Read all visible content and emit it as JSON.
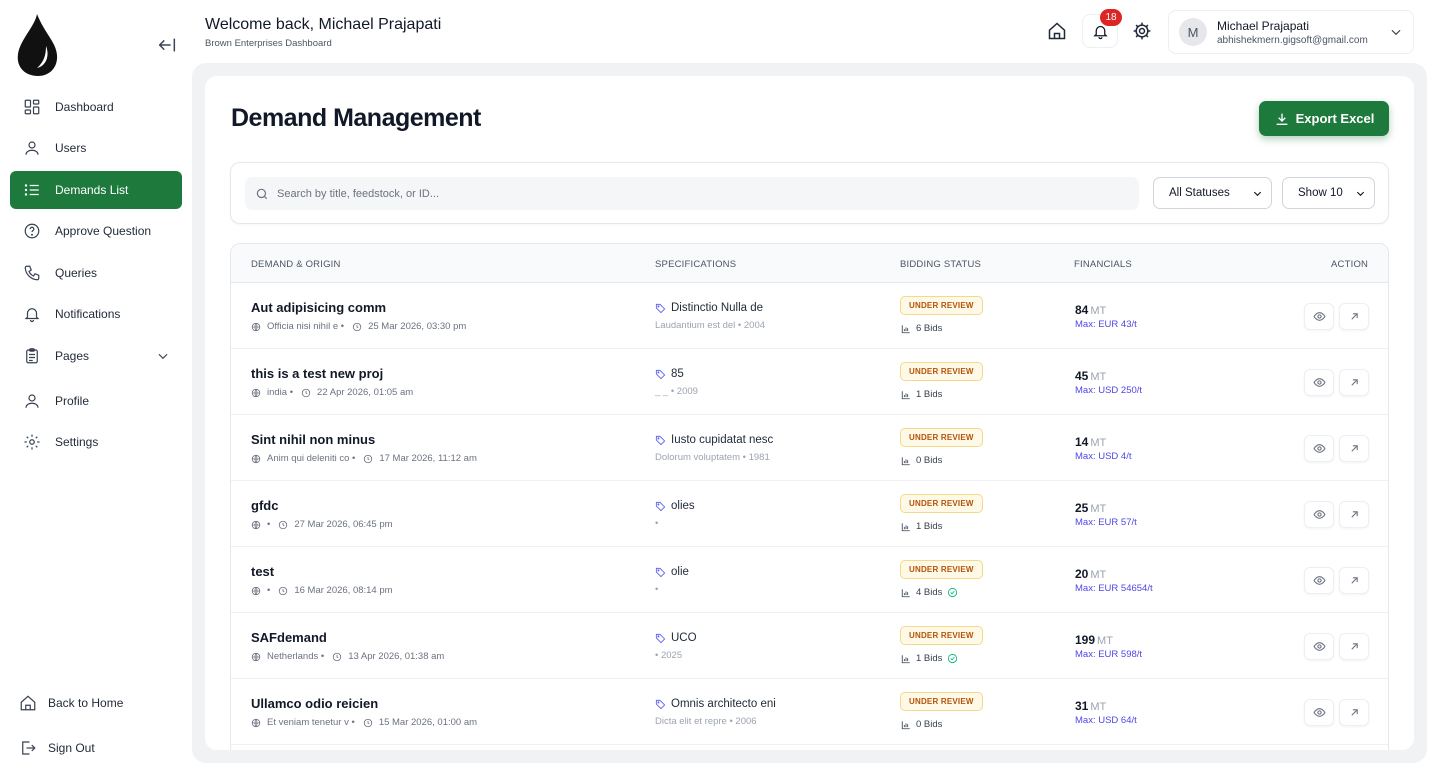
{
  "header": {
    "welcome": "Welcome back, Michael Prajapati",
    "subtitle": "Brown Enterprises Dashboard",
    "notification_count": "18",
    "user_initial": "M",
    "user_name": "Michael Prajapati",
    "user_email": "abhishekmern.gigsoft@gmail.com"
  },
  "sidebar": {
    "items": [
      {
        "label": "Dashboard",
        "icon": "dashboard-icon"
      },
      {
        "label": "Users",
        "icon": "user-icon"
      },
      {
        "label": "Demands List",
        "icon": "list-icon",
        "active": true
      },
      {
        "label": "Approve Question",
        "icon": "question-icon"
      },
      {
        "label": "Queries",
        "icon": "phone-icon"
      },
      {
        "label": "Notifications",
        "icon": "bell-icon"
      },
      {
        "label": "Pages",
        "icon": "clipboard-icon"
      },
      {
        "label": "Profile",
        "icon": "user-icon"
      },
      {
        "label": "Settings",
        "icon": "gear-icon"
      }
    ],
    "bottom": [
      {
        "label": "Back to Home",
        "icon": "home-icon"
      },
      {
        "label": "Sign Out",
        "icon": "sign-out-icon"
      }
    ]
  },
  "main": {
    "title": "Demand Management",
    "export_label": "Export Excel",
    "search_placeholder": "Search by title, feedstock, or ID...",
    "status_filter": "All Statuses",
    "show_filter": "Show 10",
    "columns": [
      "DEMAND & ORIGIN",
      "SPECIFICATIONS",
      "BIDDING STATUS",
      "FINANCIALS",
      "ACTION"
    ],
    "rows": [
      {
        "title": "Aut adipisicing comm",
        "origin": "Officia nisi nihil e •",
        "date": "25 Mar 2026, 03:30 pm",
        "spec": "Distinctio Nulla de",
        "spec_sub": "Laudantium est del • 2004",
        "status": "UNDER REVIEW",
        "bids": "6 Bids",
        "verified": false,
        "qty": "84",
        "unit": "MT",
        "max": "Max: EUR 43/t"
      },
      {
        "title": "this is a test new proj",
        "origin": "india •",
        "date": "22 Apr 2026, 01:05 am",
        "spec": "85",
        "spec_sub": "_ _ • 2009",
        "status": "UNDER REVIEW",
        "bids": "1 Bids",
        "verified": false,
        "qty": "45",
        "unit": "MT",
        "max": "Max: USD 250/t"
      },
      {
        "title": "Sint nihil non minus",
        "origin": "Anim qui deleniti co •",
        "date": "17 Mar 2026, 11:12 am",
        "spec": "Iusto cupidatat nesc",
        "spec_sub": "Dolorum voluptatem • 1981",
        "status": "UNDER REVIEW",
        "bids": "0 Bids",
        "verified": false,
        "qty": "14",
        "unit": "MT",
        "max": "Max: USD 4/t"
      },
      {
        "title": "gfdc",
        "origin": "•",
        "date": "27 Mar 2026, 06:45 pm",
        "spec": "olies",
        "spec_sub": "•",
        "status": "UNDER REVIEW",
        "bids": "1 Bids",
        "verified": false,
        "qty": "25",
        "unit": "MT",
        "max": "Max: EUR 57/t"
      },
      {
        "title": "test",
        "origin": "•",
        "date": "16 Mar 2026, 08:14 pm",
        "spec": "olie",
        "spec_sub": "•",
        "status": "UNDER REVIEW",
        "bids": "4 Bids",
        "verified": true,
        "qty": "20",
        "unit": "MT",
        "max": "Max: EUR 54654/t"
      },
      {
        "title": "SAFdemand",
        "origin": "Netherlands •",
        "date": "13 Apr 2026, 01:38 am",
        "spec": "UCO",
        "spec_sub": "• 2025",
        "status": "UNDER REVIEW",
        "bids": "1 Bids",
        "verified": true,
        "qty": "199",
        "unit": "MT",
        "max": "Max: EUR 598/t"
      },
      {
        "title": "Ullamco odio reicien",
        "origin": "Et veniam tenetur v •",
        "date": "15 Mar 2026, 01:00 am",
        "spec": "Omnis architecto eni",
        "spec_sub": "Dicta elit et repre • 2006",
        "status": "UNDER REVIEW",
        "bids": "0 Bids",
        "verified": false,
        "qty": "31",
        "unit": "MT",
        "max": "Max: USD 64/t"
      }
    ]
  }
}
